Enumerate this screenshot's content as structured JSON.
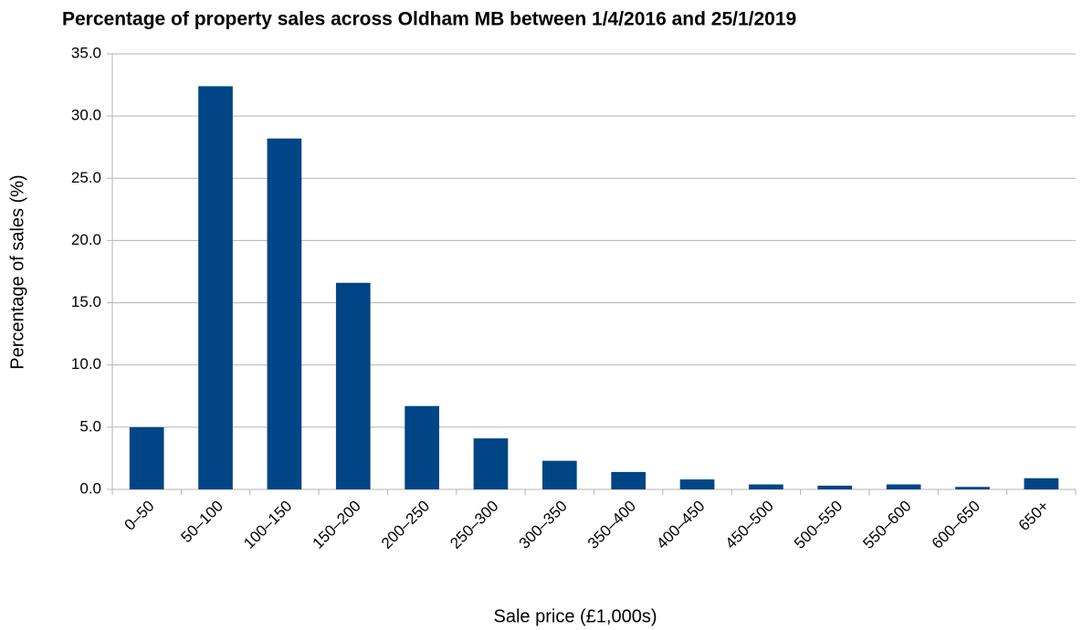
{
  "chart_data": {
    "type": "bar",
    "title": "Percentage of property sales across Oldham MB between 1/4/2016 and 25/1/2019",
    "x_label": "Sale price (£1,000s)",
    "y_label": "Percentage of sales (%)",
    "categories": [
      "0–50",
      "50–100",
      "100–150",
      "150–200",
      "200–250",
      "250–300",
      "300–350",
      "350–400",
      "400–450",
      "450–500",
      "500–550",
      "550–600",
      "600–650",
      "650+"
    ],
    "values": [
      5.0,
      32.4,
      28.2,
      16.6,
      6.7,
      4.1,
      2.3,
      1.4,
      0.8,
      0.4,
      0.3,
      0.4,
      0.2,
      0.9
    ],
    "color": "#004586",
    "ylim": [
      0,
      35
    ],
    "yticks": [
      {
        "value": 0,
        "label": "0.0"
      },
      {
        "value": 5,
        "label": "5.0"
      },
      {
        "value": 10,
        "label": "10.0"
      },
      {
        "value": 15,
        "label": "15.0"
      },
      {
        "value": 20,
        "label": "20.0"
      },
      {
        "value": 25,
        "label": "25.0"
      },
      {
        "value": 30,
        "label": "30.0"
      },
      {
        "value": 35,
        "label": "35.0"
      }
    ],
    "grid": true
  }
}
